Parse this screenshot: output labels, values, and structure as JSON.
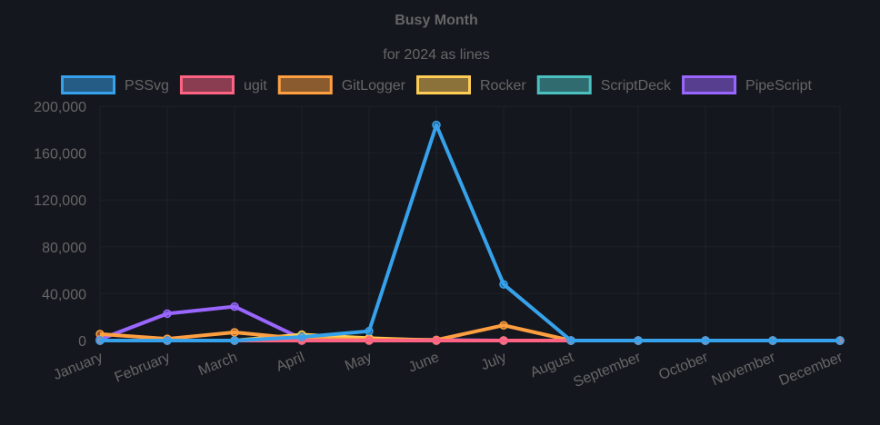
{
  "chart_data": {
    "type": "line",
    "title": "Busy Month",
    "subtitle": "for 2024 as lines",
    "categories": [
      "January",
      "February",
      "March",
      "April",
      "May",
      "June",
      "July",
      "August",
      "September",
      "October",
      "November",
      "December"
    ],
    "ylim": [
      0,
      200000
    ],
    "yticks": [
      "0",
      "40,000",
      "80,000",
      "120,000",
      "160,000",
      "200,000"
    ],
    "ytick_values": [
      0,
      40000,
      80000,
      120000,
      160000,
      200000
    ],
    "grid": true,
    "legend_position": "top",
    "series": [
      {
        "name": "PSSvg",
        "color": "#36a2eb",
        "values": [
          0,
          0,
          0,
          3000,
          8000,
          184000,
          48000,
          0,
          0,
          0,
          0,
          0
        ]
      },
      {
        "name": "ugit",
        "color": "#ff6384",
        "values": [
          0,
          0,
          0,
          0,
          0,
          0,
          0,
          0,
          0,
          0,
          0,
          0
        ]
      },
      {
        "name": "GitLogger",
        "color": "#ff9f40",
        "values": [
          5500,
          1500,
          7000,
          1500,
          1000,
          500,
          13000,
          0,
          0,
          0,
          0,
          0
        ]
      },
      {
        "name": "Rocker",
        "color": "#ffcd56",
        "values": [
          0,
          0,
          0,
          5000,
          2000,
          0,
          0,
          0,
          0,
          0,
          0,
          0
        ]
      },
      {
        "name": "ScriptDeck",
        "color": "#4bc0c0",
        "values": [
          0,
          0,
          0,
          0,
          0,
          0,
          0,
          0,
          0,
          0,
          0,
          0
        ]
      },
      {
        "name": "PipeScript",
        "color": "#9966ff",
        "values": [
          1000,
          23000,
          29000,
          1500,
          1500,
          500,
          0,
          0,
          0,
          0,
          0,
          0
        ]
      }
    ]
  }
}
